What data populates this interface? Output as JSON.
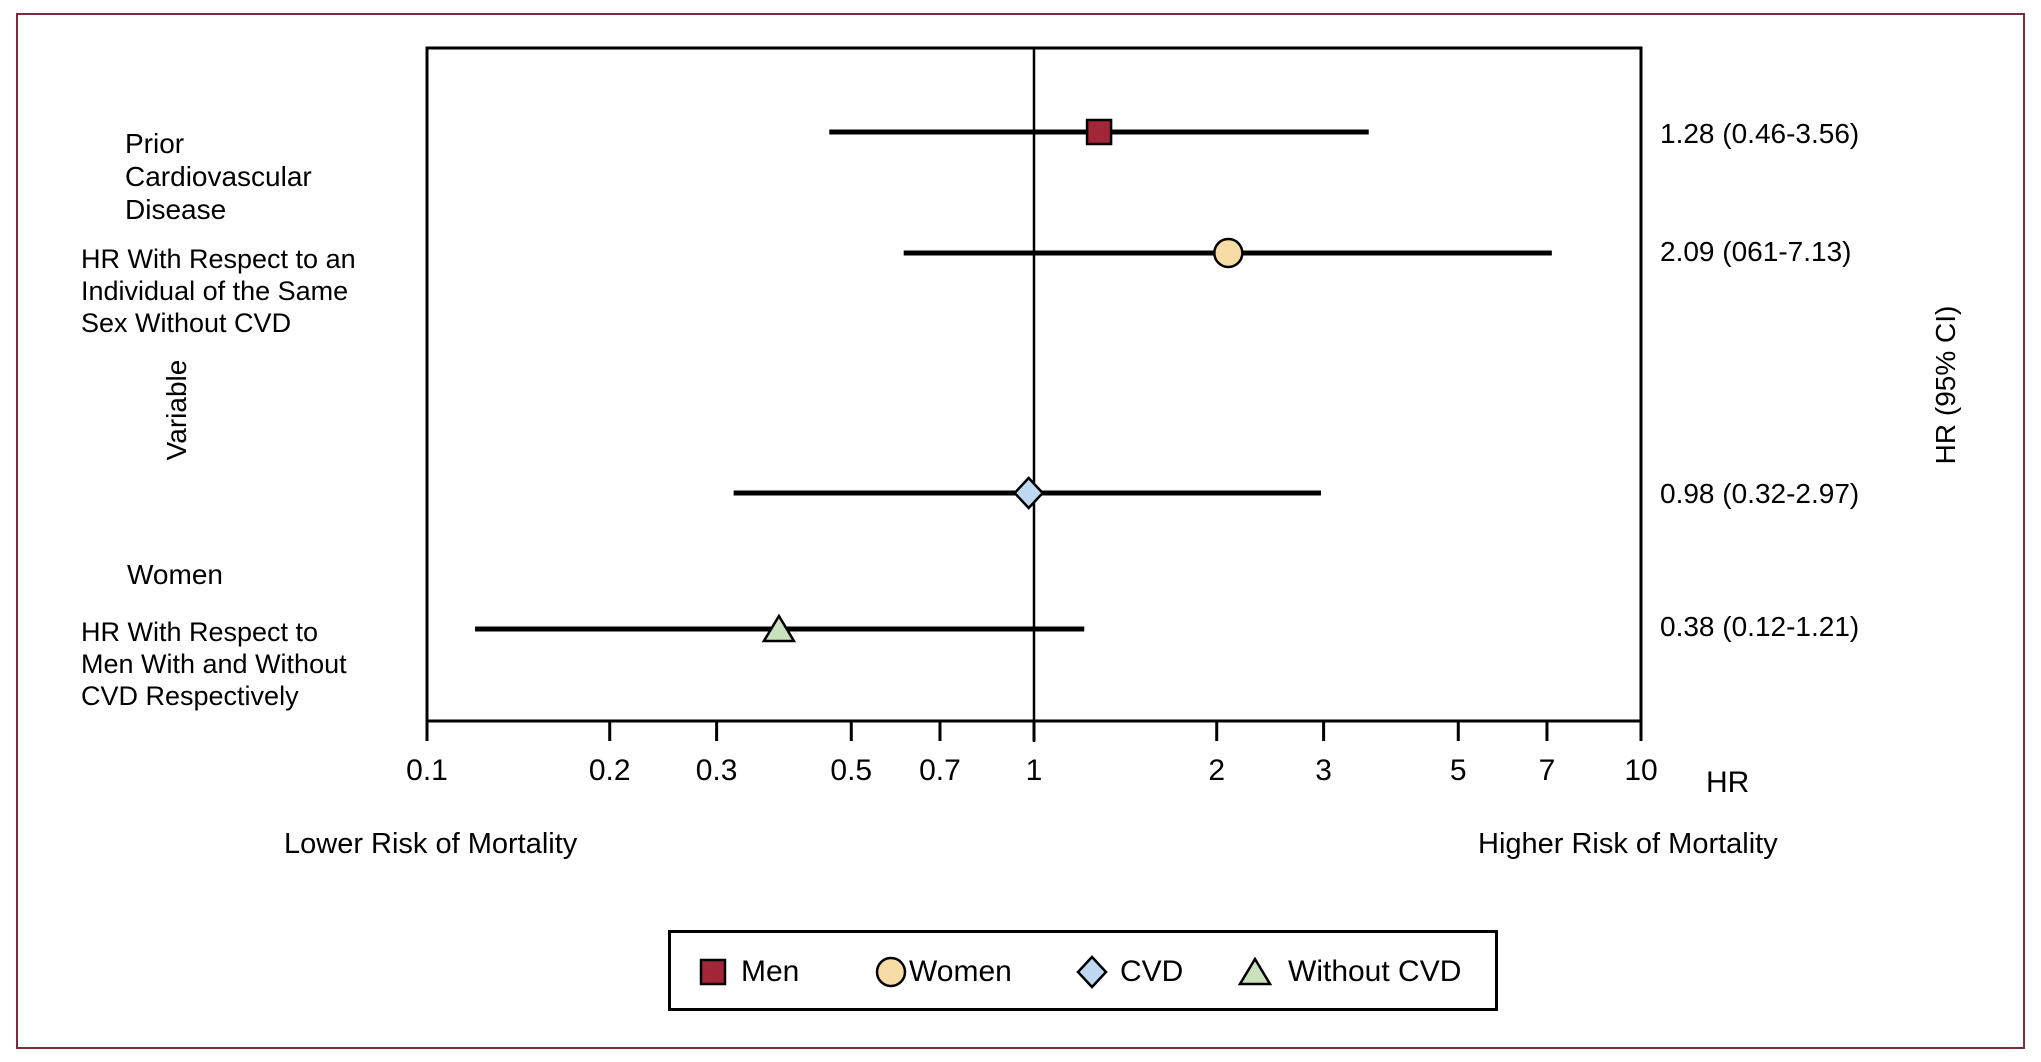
{
  "figure": {
    "border_color": "#7B2D3E"
  },
  "chart_data": {
    "type": "scatter",
    "variant": "forest-plot",
    "x_axis": {
      "label": "HR",
      "scale": "log10",
      "min": 0.1,
      "max": 10,
      "ticks": [
        0.1,
        0.2,
        0.3,
        0.5,
        0.7,
        1,
        2,
        3,
        5,
        7,
        10
      ],
      "tick_labels": [
        "0.1",
        "0.2",
        "0.3",
        "0.5",
        "0.7",
        "1",
        "2",
        "3",
        "5",
        "7",
        "10"
      ],
      "left_caption": "Lower Risk of Mortality",
      "right_caption": "Higher Risk of Mortality"
    },
    "y_axis_label": "Variable",
    "right_column_header": "HR (95% CI)",
    "reference_line_x": 1,
    "rows": [
      {
        "series": "Men",
        "hr": 1.28,
        "ci_low": 0.46,
        "ci_high": 3.56,
        "value_label": "1.28 (0.46-3.56)",
        "marker": "square",
        "color": "#A12638"
      },
      {
        "series": "Women",
        "hr": 2.09,
        "ci_low": 0.61,
        "ci_high": 7.13,
        "value_label": "2.09 (061-7.13)",
        "marker": "circle",
        "color": "#F8DCA6"
      },
      {
        "series": "CVD",
        "hr": 0.98,
        "ci_low": 0.32,
        "ci_high": 2.97,
        "value_label": "0.98 (0.32-2.97)",
        "marker": "diamond",
        "color": "#BED8F2"
      },
      {
        "series": "Without CVD",
        "hr": 0.38,
        "ci_low": 0.12,
        "ci_high": 1.21,
        "value_label": "0.38 (0.12-1.21)",
        "marker": "triangle",
        "color": "#C9E2BD"
      }
    ],
    "row_groups": [
      {
        "title": "Prior\nCardiovascular\nDisease",
        "subtitle": "HR With Respect to an\nIndividual of the Same\nSex Without CVD"
      },
      {
        "title": "Women",
        "subtitle": "HR With Respect to\nMen With and Without\nCVD Respectively"
      }
    ]
  },
  "legend": {
    "items": [
      {
        "label": "Men",
        "marker": "square",
        "color": "#A12638"
      },
      {
        "label": "Women",
        "marker": "circle",
        "color": "#F8DCA6"
      },
      {
        "label": "CVD",
        "marker": "diamond",
        "color": "#BED8F2"
      },
      {
        "label": "Without CVD",
        "marker": "triangle",
        "color": "#C9E2BD"
      }
    ]
  }
}
